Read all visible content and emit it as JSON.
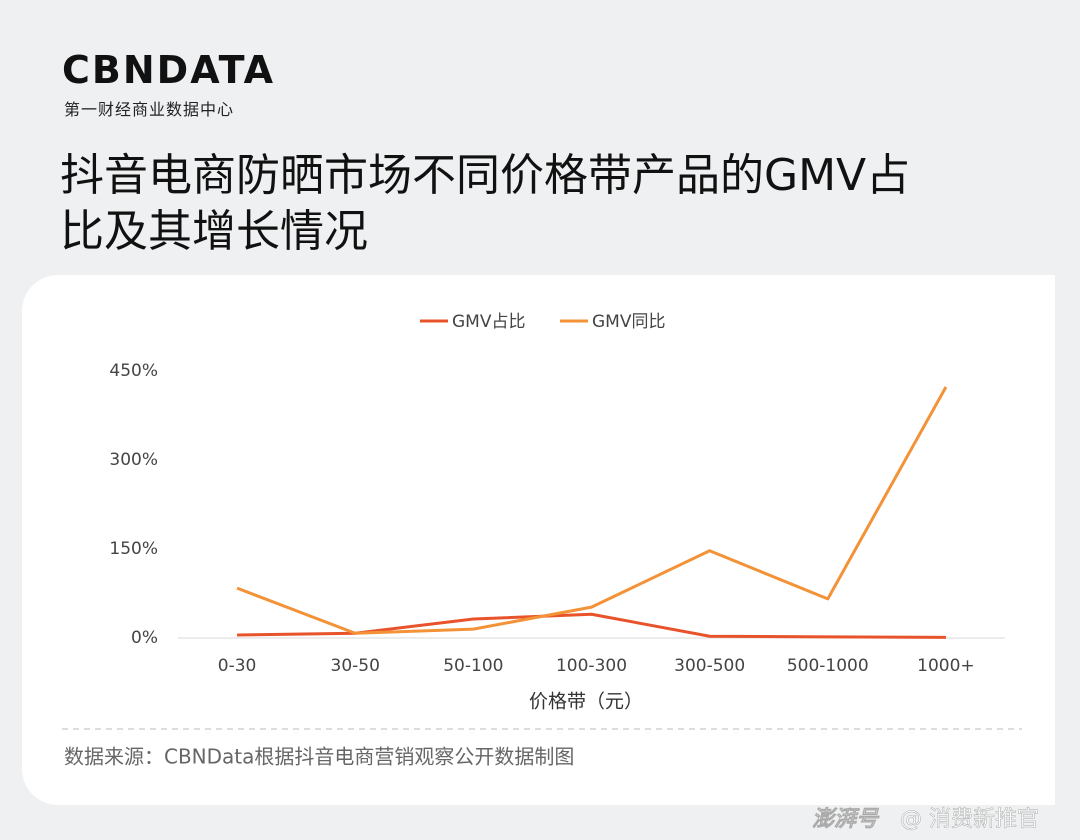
{
  "header": {
    "logo": "CBNDATA",
    "logo_subtitle": "第一财经商业数据中心"
  },
  "chart_data": {
    "type": "line",
    "title": "抖音电商防晒市场不同价格带产品的GMV占比及其增长情况",
    "categories": [
      "0-30",
      "30-50",
      "50-100",
      "100-300",
      "300-500",
      "500-1000",
      "1000+"
    ],
    "series": [
      {
        "name": "GMV占比",
        "color": "#e8532b",
        "values": [
          5,
          8,
          32,
          40,
          3,
          2,
          1
        ]
      },
      {
        "name": "GMV同比",
        "color": "#f39237",
        "values": [
          84,
          8,
          15,
          52,
          147,
          66,
          423
        ]
      }
    ],
    "ylim": [
      0,
      450
    ],
    "yticks": [
      {
        "value": 0,
        "label": "0%"
      },
      {
        "value": 150,
        "label": "150%"
      },
      {
        "value": 300,
        "label": "300%"
      },
      {
        "value": 450,
        "label": "450%"
      }
    ],
    "x_label": "价格带（元）",
    "legend": "top",
    "grid": false
  },
  "source": "数据来源：CBNData根据抖音电商营销观察公开数据制图",
  "footer": {
    "platform": "澎湃号",
    "account": "@ 消费新推官"
  }
}
